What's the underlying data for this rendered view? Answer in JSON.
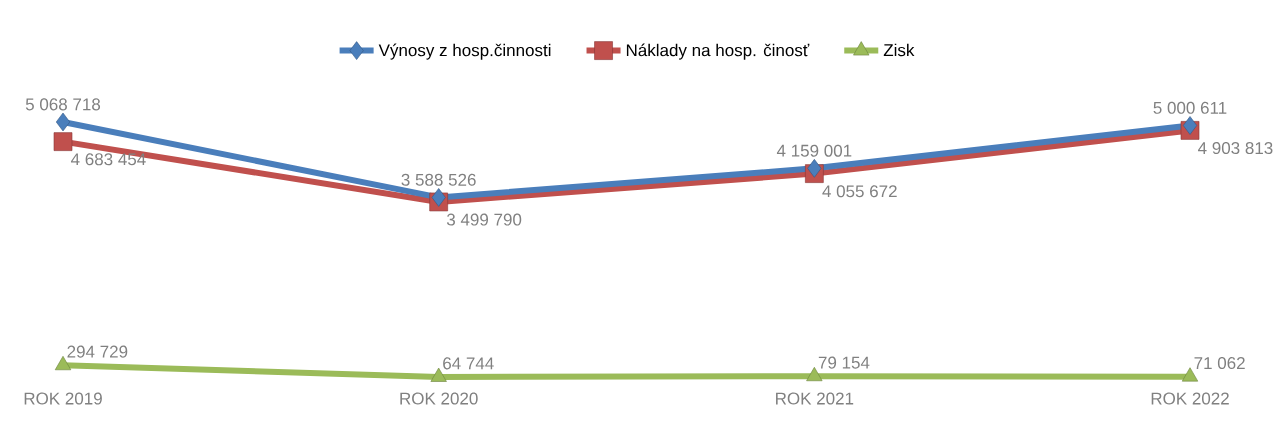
{
  "chart_data": {
    "type": "line",
    "categories": [
      "ROK 2019",
      "ROK 2020",
      "ROK 2021",
      "ROK 2022"
    ],
    "series": [
      {
        "name": "Výnosy z hosp.činnosti",
        "color": "#4a7ebb",
        "marker": "diamond",
        "values": [
          5068718,
          3588526,
          4159001,
          5000611
        ],
        "value_labels": [
          "5 068 718",
          "3 588 526",
          "4 159 001",
          "5 000 611"
        ]
      },
      {
        "name": "Náklady na hosp. činosť",
        "color": "#c0504d",
        "marker": "square",
        "values": [
          4683454,
          3499790,
          4055672,
          4903813
        ],
        "value_labels": [
          "4 683 454",
          "3 499 790",
          "4 055 672",
          "4 903 813"
        ]
      },
      {
        "name": "Zisk",
        "color": "#9bbb59",
        "marker": "triangle",
        "values": [
          294729,
          64744,
          79154,
          71062
        ],
        "value_labels": [
          "294 729",
          "64 744",
          "79 154",
          "71 062"
        ]
      }
    ],
    "legend": "top"
  }
}
